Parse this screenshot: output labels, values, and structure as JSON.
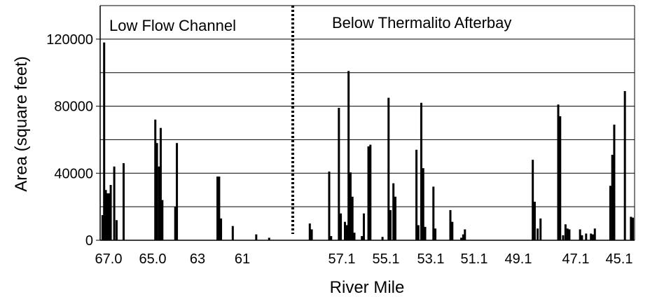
{
  "chart_data": {
    "type": "bar",
    "xlabel": "River Mile",
    "ylabel": "Area (square feet)",
    "ylim": [
      0,
      140000
    ],
    "yticks": [
      0,
      40000,
      80000,
      120000
    ],
    "grid_lines": [
      20000,
      40000,
      60000,
      80000,
      100000,
      120000,
      140000
    ],
    "regions": [
      {
        "label": "Low Flow Channel"
      },
      {
        "label": "Below Thermalito Afterbay"
      }
    ],
    "xticks_left": [
      "67.0",
      "65.0",
      "63",
      "61"
    ],
    "xticks_right": [
      "57.1",
      "55.1",
      "53.1",
      "51.1",
      "49.1",
      "47.1",
      "45.1"
    ],
    "segments": [
      {
        "x_start": 67.0,
        "x_end": 59.3,
        "bars": [
          [
            66.9,
            15000
          ],
          [
            66.83,
            118000
          ],
          [
            66.76,
            30000
          ],
          [
            66.69,
            28000
          ],
          [
            66.62,
            28000
          ],
          [
            66.55,
            33000
          ],
          [
            66.4,
            44000
          ],
          [
            66.3,
            12000
          ],
          [
            66.0,
            46000
          ],
          [
            64.65,
            72000
          ],
          [
            64.58,
            58000
          ],
          [
            64.49,
            44000
          ],
          [
            64.42,
            67000
          ],
          [
            64.35,
            24000
          ],
          [
            63.8,
            20000
          ],
          [
            63.73,
            58000
          ],
          [
            62.0,
            38000
          ],
          [
            61.93,
            38000
          ],
          [
            61.85,
            13000
          ],
          [
            61.35,
            8500
          ],
          [
            60.35,
            3500
          ],
          [
            59.8,
            1500
          ]
        ]
      },
      {
        "x_start": 59.0,
        "x_end": 45.1,
        "bars": [
          [
            58.5,
            10000
          ],
          [
            58.42,
            6500
          ],
          [
            57.7,
            41000
          ],
          [
            57.62,
            2500
          ],
          [
            57.3,
            79000
          ],
          [
            57.22,
            16000
          ],
          [
            57.05,
            11000
          ],
          [
            56.97,
            9000
          ],
          [
            56.9,
            101000
          ],
          [
            56.82,
            40500
          ],
          [
            56.74,
            26000
          ],
          [
            56.66,
            4500
          ],
          [
            56.35,
            2500
          ],
          [
            56.27,
            16000
          ],
          [
            56.08,
            56000
          ],
          [
            56.0,
            57000
          ],
          [
            55.5,
            2000
          ],
          [
            55.25,
            85000
          ],
          [
            55.17,
            18000
          ],
          [
            55.05,
            34000
          ],
          [
            54.97,
            26000
          ],
          [
            54.1,
            54000
          ],
          [
            54.02,
            9000
          ],
          [
            53.9,
            82000
          ],
          [
            53.82,
            43000
          ],
          [
            53.74,
            8000
          ],
          [
            53.4,
            32000
          ],
          [
            53.32,
            7000
          ],
          [
            52.7,
            18000
          ],
          [
            52.62,
            11000
          ],
          [
            52.25,
            1500
          ],
          [
            52.17,
            3500
          ],
          [
            52.1,
            6500
          ],
          [
            49.3,
            48000
          ],
          [
            49.22,
            23000
          ],
          [
            49.1,
            7000
          ],
          [
            48.98,
            13000
          ],
          [
            48.25,
            81000
          ],
          [
            48.17,
            74000
          ],
          [
            48.05,
            3000
          ],
          [
            47.95,
            9500
          ],
          [
            47.87,
            7000
          ],
          [
            47.79,
            6500
          ],
          [
            47.35,
            6500
          ],
          [
            47.27,
            3000
          ],
          [
            47.1,
            4000
          ],
          [
            46.9,
            4000
          ],
          [
            46.82,
            3500
          ],
          [
            46.74,
            7000
          ],
          [
            46.1,
            32500
          ],
          [
            46.02,
            51000
          ],
          [
            45.94,
            69000
          ],
          [
            45.5,
            89000
          ],
          [
            45.25,
            14000
          ],
          [
            45.17,
            13500
          ]
        ]
      }
    ]
  }
}
